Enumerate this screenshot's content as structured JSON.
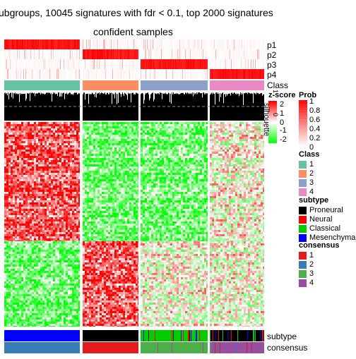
{
  "title_line1": "ubgroups, 10045 signatures with fdr < 0.1, top 2000 signatures",
  "title_line2": "confident samples",
  "row_annotation_labels": [
    "p1",
    "p2",
    "p3",
    "p4",
    "Class"
  ],
  "silhouette_label": "silhouette",
  "silhouette_ticks": [
    "1",
    "0"
  ],
  "bottom_labels": [
    "subtype",
    "consensus"
  ],
  "legends": {
    "zscore": {
      "title": "z-score",
      "ticks": [
        "2",
        "1",
        "0",
        "-1",
        "-2"
      ]
    },
    "prob": {
      "title": "Prob",
      "ticks": [
        "1",
        "0.8",
        "0.6",
        "0.4",
        "0.2",
        "0"
      ]
    },
    "class": {
      "title": "Class",
      "items": [
        {
          "label": "1",
          "color": "#66C2A5"
        },
        {
          "label": "2",
          "color": "#FC8D62"
        },
        {
          "label": "3",
          "color": "#8DA0CB"
        },
        {
          "label": "4",
          "color": "#E78AC3"
        }
      ]
    },
    "subtype": {
      "title": "subtype",
      "items": [
        {
          "label": "Proneural",
          "color": "#000000"
        },
        {
          "label": "Neural",
          "color": "#FF0000"
        },
        {
          "label": "Classical",
          "color": "#00CC00"
        },
        {
          "label": "Mesenchymal",
          "color": "#0000FF"
        }
      ]
    },
    "consensus": {
      "title": "consensus",
      "items": [
        {
          "label": "1",
          "color": "#E41A1C"
        },
        {
          "label": "2",
          "color": "#377EB8"
        },
        {
          "label": "3",
          "color": "#4DAF4A"
        },
        {
          "label": "4",
          "color": "#984EA3"
        }
      ]
    }
  },
  "chart_data": {
    "type": "heatmap",
    "title": "ubgroups, 10045 signatures with fdr < 0.1, top 2000 signatures",
    "subtitle": "confident samples",
    "column_groups": [
      {
        "class": "1",
        "subtype": "Mesenchymal",
        "consensus": "2"
      },
      {
        "class": "2",
        "subtype": "Proneural",
        "consensus": "1"
      },
      {
        "class": "3",
        "subtype": "Classical",
        "consensus": "3"
      },
      {
        "class": "4",
        "subtype": "Proneural",
        "consensus": "4"
      }
    ],
    "row_clusters": [
      {
        "pattern_by_group": [
          "high",
          "low",
          "low",
          "mixed"
        ]
      },
      {
        "pattern_by_group": [
          "low",
          "high",
          "mixed",
          "mixed"
        ]
      }
    ],
    "zscore_range": [
      -2,
      2
    ],
    "prob_range": [
      0,
      1
    ],
    "colors": {
      "high": "#FF0000",
      "mid": "#FFFFFF",
      "low": "#00FF00",
      "silhouette_bg": "#000000"
    }
  }
}
